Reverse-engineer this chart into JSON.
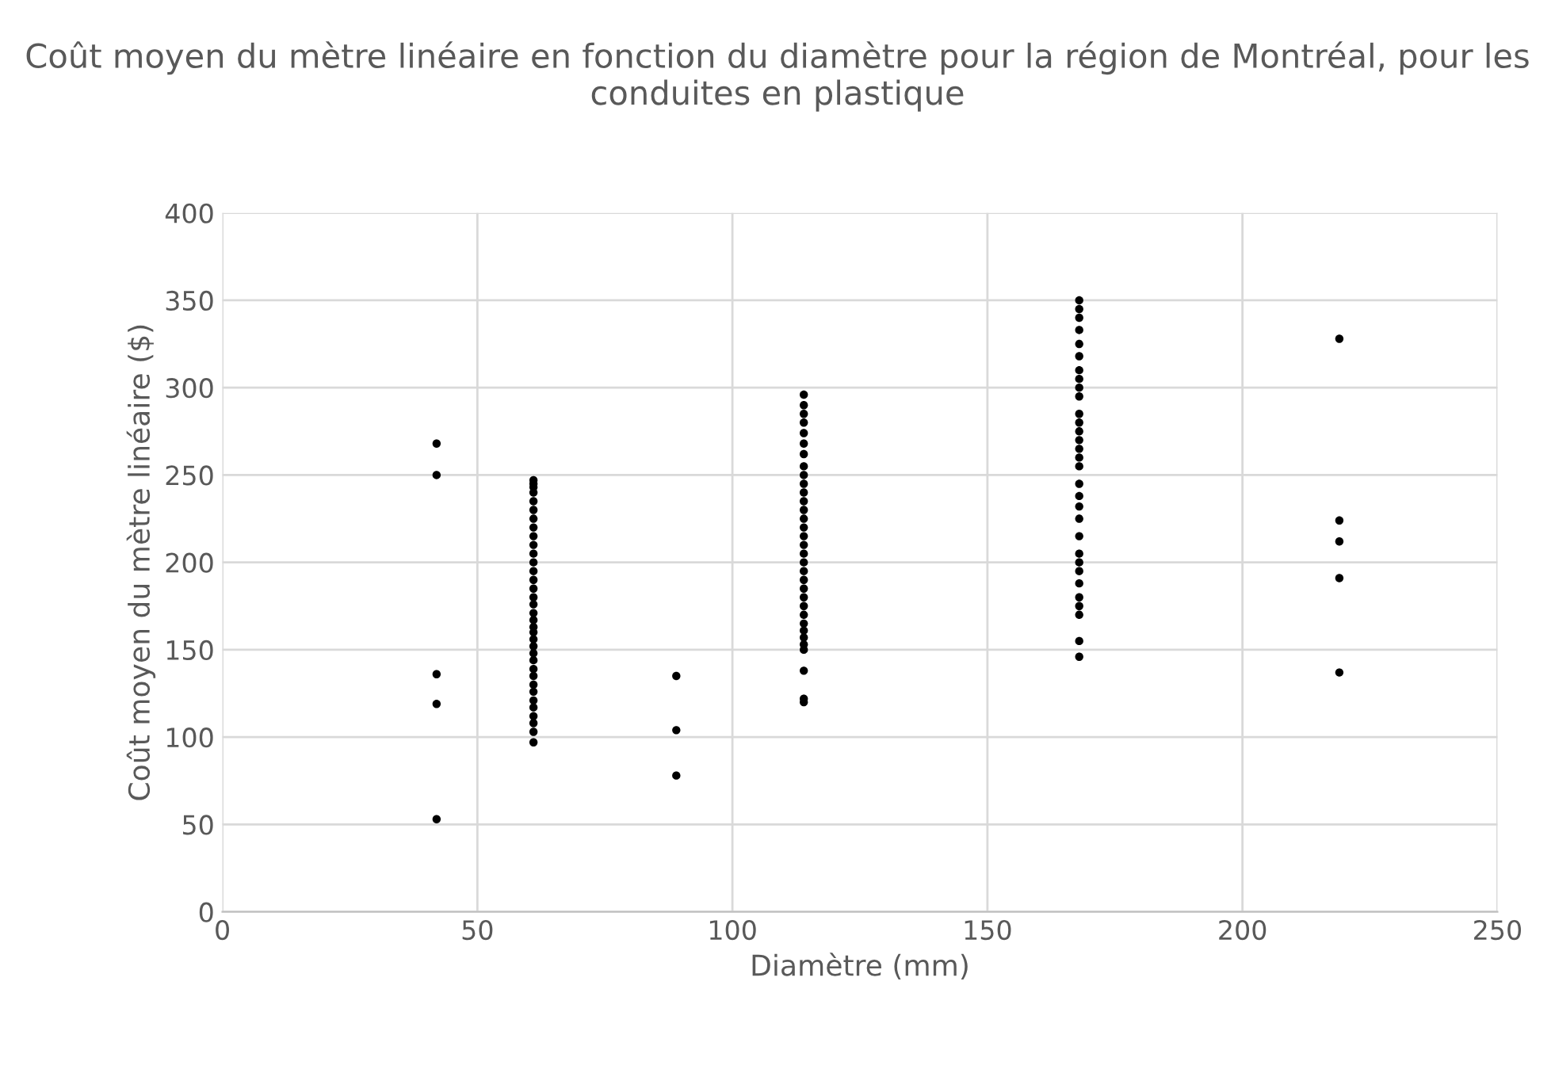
{
  "chart_data": {
    "type": "scatter",
    "title": "Coût moyen du mètre linéaire en fonction du diamètre pour la région de Montréal, pour les conduites en plastique",
    "xlabel": "Diamètre (mm)",
    "ylabel": "Coût moyen du mètre linéaire ($)",
    "xlim": [
      0,
      250
    ],
    "xticks": [
      0,
      50,
      100,
      150,
      200,
      250
    ],
    "ylim": [
      0,
      400
    ],
    "yticks": [
      0,
      50,
      100,
      150,
      200,
      250,
      300,
      350,
      400
    ],
    "grid": true,
    "marker": "circle",
    "series": [
      {
        "color": "#000000",
        "x": [
          42,
          42,
          42,
          42,
          42,
          61,
          61,
          61,
          61,
          61,
          61,
          61,
          61,
          61,
          61,
          61,
          61,
          61,
          61,
          61,
          61,
          61,
          61,
          61,
          61,
          61,
          61,
          61,
          61,
          61,
          61,
          61,
          61,
          61,
          61,
          61,
          61,
          61,
          61,
          61,
          89,
          89,
          89,
          114,
          114,
          114,
          114,
          114,
          114,
          114,
          114,
          114,
          114,
          114,
          114,
          114,
          114,
          114,
          114,
          114,
          114,
          114,
          114,
          114,
          114,
          114,
          114,
          114,
          114,
          114,
          114,
          114,
          114,
          114,
          114,
          114,
          168,
          168,
          168,
          168,
          168,
          168,
          168,
          168,
          168,
          168,
          168,
          168,
          168,
          168,
          168,
          168,
          168,
          168,
          168,
          168,
          168,
          168,
          168,
          168,
          168,
          168,
          168,
          168,
          168,
          168,
          168,
          219,
          219,
          219,
          219,
          219
        ],
        "values": [
          268,
          250,
          136,
          119,
          53,
          97,
          103,
          108,
          112,
          117,
          121,
          126,
          130,
          135,
          139,
          144,
          148,
          152,
          156,
          160,
          163,
          167,
          171,
          176,
          180,
          185,
          190,
          195,
          200,
          205,
          210,
          215,
          220,
          225,
          230,
          235,
          240,
          243,
          245,
          247,
          135,
          104,
          78,
          120,
          122,
          138,
          150,
          153,
          157,
          161,
          165,
          170,
          175,
          180,
          185,
          190,
          195,
          200,
          205,
          210,
          215,
          220,
          225,
          230,
          235,
          240,
          245,
          250,
          255,
          262,
          268,
          274,
          280,
          285,
          290,
          296,
          146,
          155,
          170,
          175,
          180,
          188,
          195,
          200,
          205,
          215,
          225,
          232,
          238,
          245,
          255,
          260,
          265,
          270,
          275,
          280,
          285,
          295,
          300,
          305,
          310,
          318,
          325,
          333,
          340,
          345,
          350,
          328,
          224,
          212,
          191,
          137
        ]
      }
    ]
  }
}
